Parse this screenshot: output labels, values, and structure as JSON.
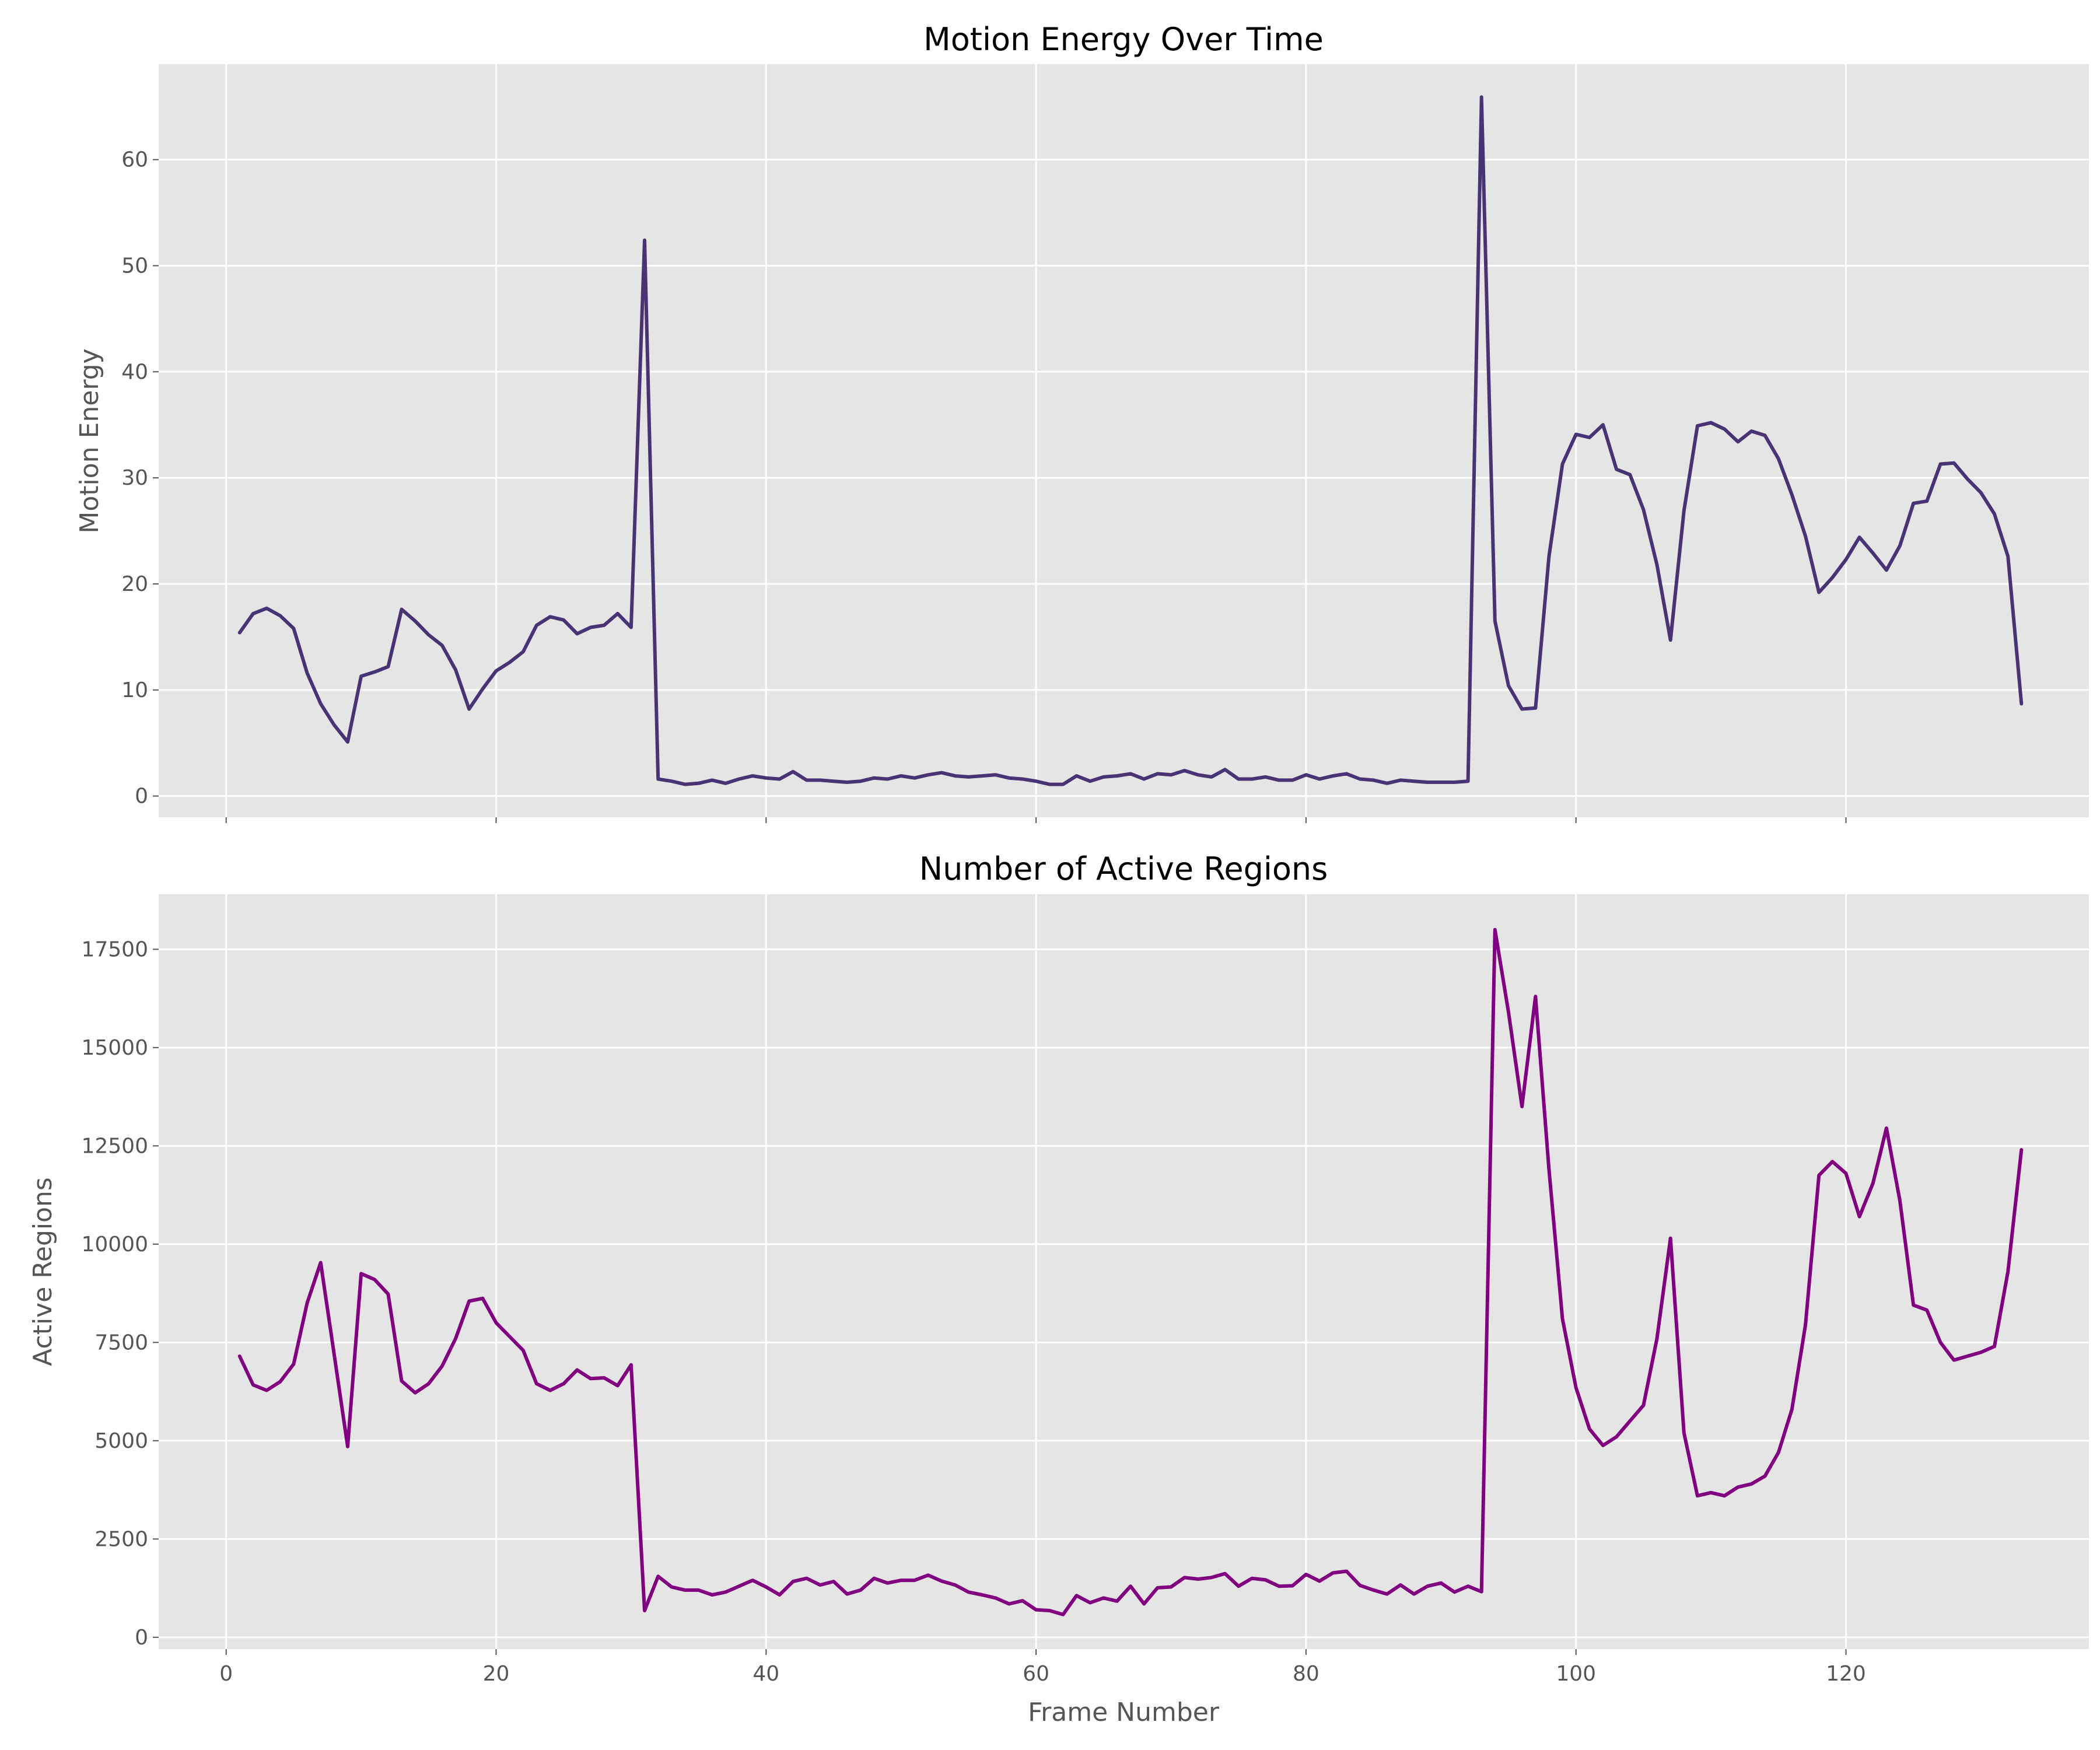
{
  "chart_data": [
    {
      "type": "line",
      "title": "Motion Energy Over Time",
      "xlabel": "",
      "ylabel": "Motion Energy",
      "xlim": [
        -5,
        138
      ],
      "ylim": [
        -2,
        69
      ],
      "xticks": [
        0,
        20,
        40,
        60,
        80,
        100,
        120
      ],
      "xtick_labels_visible": false,
      "yticks": [
        0,
        10,
        20,
        30,
        40,
        50,
        60
      ],
      "ytick_labels": [
        "0",
        "10",
        "20",
        "30",
        "40",
        "50",
        "60"
      ],
      "grid": true,
      "series": [
        {
          "color": "#483475",
          "x": [
            1,
            2,
            3,
            4,
            5,
            6,
            7,
            8,
            9,
            10,
            11,
            12,
            13,
            14,
            15,
            16,
            17,
            18,
            19,
            20,
            21,
            22,
            23,
            24,
            25,
            26,
            27,
            28,
            29,
            30,
            31,
            32,
            33,
            34,
            35,
            36,
            37,
            38,
            39,
            40,
            41,
            42,
            43,
            44,
            45,
            46,
            47,
            48,
            49,
            50,
            51,
            52,
            53,
            54,
            55,
            56,
            57,
            58,
            59,
            60,
            61,
            62,
            63,
            64,
            65,
            66,
            67,
            68,
            69,
            70,
            71,
            72,
            73,
            74,
            75,
            76,
            77,
            78,
            79,
            80,
            81,
            82,
            83,
            84,
            85,
            86,
            87,
            88,
            89,
            90,
            91,
            92,
            93,
            94,
            95,
            96,
            97,
            98,
            99,
            100,
            101,
            102,
            103,
            104,
            105,
            106,
            107,
            108,
            109,
            110,
            111,
            112,
            113,
            114,
            115,
            116,
            117,
            118,
            119,
            120,
            121,
            122,
            123,
            124,
            125,
            126,
            127,
            128,
            129,
            130,
            131,
            132,
            133
          ],
          "y": [
            15.4,
            17.2,
            17.7,
            17.0,
            15.8,
            11.6,
            8.7,
            6.7,
            5.1,
            11.3,
            11.7,
            12.2,
            17.6,
            16.5,
            15.2,
            14.2,
            11.9,
            8.2,
            10.1,
            11.8,
            12.6,
            13.6,
            16.1,
            16.9,
            16.6,
            15.3,
            15.9,
            16.1,
            17.2,
            15.9,
            52.4,
            1.6,
            1.4,
            1.1,
            1.2,
            1.5,
            1.2,
            1.6,
            1.9,
            1.7,
            1.6,
            2.3,
            1.5,
            1.5,
            1.4,
            1.3,
            1.4,
            1.7,
            1.6,
            1.9,
            1.7,
            2.0,
            2.2,
            1.9,
            1.8,
            1.9,
            2.0,
            1.7,
            1.6,
            1.4,
            1.1,
            1.1,
            1.9,
            1.4,
            1.8,
            1.9,
            2.1,
            1.6,
            2.1,
            2.0,
            2.4,
            2.0,
            1.8,
            2.5,
            1.6,
            1.6,
            1.8,
            1.5,
            1.5,
            2.0,
            1.6,
            1.9,
            2.1,
            1.6,
            1.5,
            1.2,
            1.5,
            1.4,
            1.3,
            1.3,
            1.3,
            1.4,
            65.9,
            16.5,
            10.4,
            8.2,
            8.3,
            22.6,
            31.3,
            34.1,
            33.8,
            35.0,
            30.8,
            30.3,
            27.0,
            21.8,
            14.7,
            26.9,
            34.9,
            35.2,
            34.6,
            33.4,
            34.4,
            34.0,
            31.8,
            28.4,
            24.5,
            19.2,
            20.6,
            22.3,
            24.4,
            22.9,
            21.3,
            23.6,
            27.6,
            27.8,
            31.3,
            31.4,
            29.9,
            28.6,
            26.6,
            22.6,
            8.7
          ]
        }
      ]
    },
    {
      "type": "line",
      "title": "Number of Active Regions",
      "xlabel": "Frame Number",
      "ylabel": "Active Regions",
      "xlim": [
        -5,
        138
      ],
      "ylim": [
        -300,
        18900
      ],
      "xticks": [
        0,
        20,
        40,
        60,
        80,
        100,
        120
      ],
      "xtick_labels": [
        "0",
        "20",
        "40",
        "60",
        "80",
        "100",
        "120"
      ],
      "yticks": [
        0,
        2500,
        5000,
        7500,
        10000,
        12500,
        15000,
        17500
      ],
      "ytick_labels": [
        "0",
        "2500",
        "5000",
        "7500",
        "10000",
        "12500",
        "15000",
        "17500"
      ],
      "grid": true,
      "series": [
        {
          "color": "#800080",
          "x": [
            1,
            2,
            3,
            4,
            5,
            6,
            7,
            8,
            9,
            10,
            11,
            12,
            13,
            14,
            15,
            16,
            17,
            18,
            19,
            20,
            21,
            22,
            23,
            24,
            25,
            26,
            27,
            28,
            29,
            30,
            31,
            32,
            33,
            34,
            35,
            36,
            37,
            38,
            39,
            40,
            41,
            42,
            43,
            44,
            45,
            46,
            47,
            48,
            49,
            50,
            51,
            52,
            53,
            54,
            55,
            56,
            57,
            58,
            59,
            60,
            61,
            62,
            63,
            64,
            65,
            66,
            67,
            68,
            69,
            70,
            71,
            72,
            73,
            74,
            75,
            76,
            77,
            78,
            79,
            80,
            81,
            82,
            83,
            84,
            85,
            86,
            87,
            88,
            89,
            90,
            91,
            92,
            93,
            94,
            95,
            96,
            97,
            98,
            99,
            100,
            101,
            102,
            103,
            104,
            105,
            106,
            107,
            108,
            109,
            110,
            111,
            112,
            113,
            114,
            115,
            116,
            117,
            118,
            119,
            120,
            121,
            122,
            123,
            124,
            125,
            126,
            127,
            128,
            129,
            130,
            131,
            132,
            133
          ],
          "y": [
            7150,
            6420,
            6280,
            6500,
            6950,
            8500,
            9530,
            7200,
            4850,
            9250,
            9100,
            8730,
            6520,
            6220,
            6450,
            6900,
            7600,
            8550,
            8620,
            8000,
            7650,
            7300,
            6450,
            6280,
            6450,
            6800,
            6580,
            6600,
            6400,
            6930,
            680,
            1550,
            1280,
            1200,
            1200,
            1080,
            1150,
            1300,
            1450,
            1280,
            1080,
            1420,
            1500,
            1330,
            1420,
            1100,
            1200,
            1500,
            1380,
            1450,
            1450,
            1580,
            1430,
            1330,
            1150,
            1080,
            1000,
            850,
            930,
            700,
            680,
            580,
            1060,
            880,
            1000,
            920,
            1300,
            850,
            1260,
            1280,
            1520,
            1480,
            1520,
            1620,
            1300,
            1500,
            1460,
            1300,
            1310,
            1600,
            1430,
            1640,
            1680,
            1320,
            1200,
            1100,
            1330,
            1100,
            1300,
            1380,
            1150,
            1300,
            1160,
            18000,
            15900,
            13500,
            16300,
            11900,
            8100,
            6350,
            5300,
            4880,
            5100,
            5500,
            5900,
            7600,
            10150,
            5200,
            3600,
            3680,
            3600,
            3820,
            3900,
            4100,
            4700,
            5800,
            7950,
            11750,
            12100,
            11800,
            10700,
            11550,
            12950,
            11100,
            8450,
            8320,
            7500,
            7050,
            7150,
            7250,
            7400,
            9300,
            12400
          ]
        }
      ]
    }
  ]
}
